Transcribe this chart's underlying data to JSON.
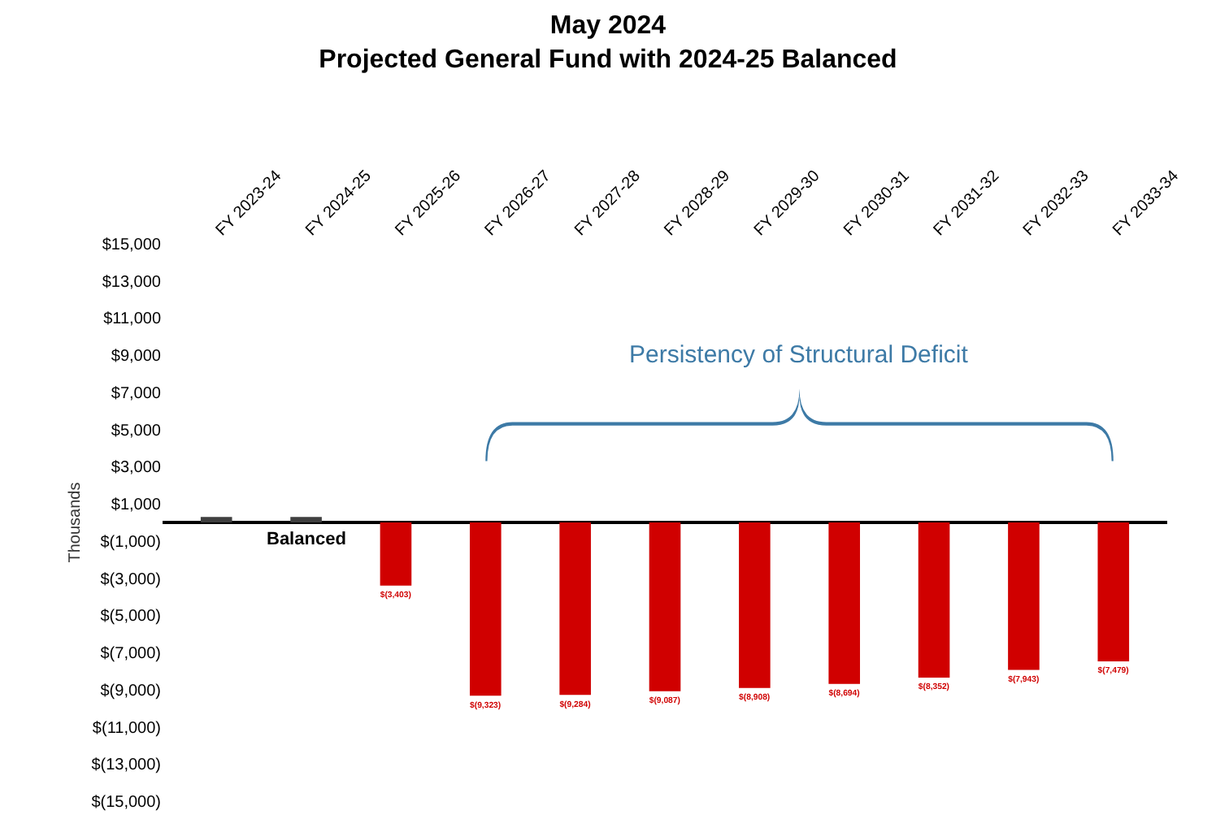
{
  "chart_data": {
    "type": "bar",
    "title": "May 2024",
    "subtitle": "Projected General Fund with 2024-25 Balanced",
    "ylabel": "Thousands",
    "categories": [
      "FY 2023-24",
      "FY 2024-25",
      "FY 2025-26",
      "FY 2026-27",
      "FY 2027-28",
      "FY 2028-29",
      "FY 2029-30",
      "FY 2030-31",
      "FY 2031-32",
      "FY 2032-33",
      "FY 2033-34"
    ],
    "values": [
      300,
      300,
      -3403,
      -9323,
      -9284,
      -9087,
      -8908,
      -8694,
      -8352,
      -7943,
      -7479
    ],
    "value_labels": [
      null,
      null,
      "$(3,403)",
      "$(9,323)",
      "$(9,284)",
      "$(9,087)",
      "$(8,908)",
      "$(8,694)",
      "$(8,352)",
      "$(7,943)",
      "$(7,479)"
    ],
    "colors": [
      "#404040",
      "#404040",
      "#d00000",
      "#d00000",
      "#d00000",
      "#d00000",
      "#d00000",
      "#d00000",
      "#d00000",
      "#d00000",
      "#d00000"
    ],
    "ylim": [
      -15000,
      15000
    ],
    "yticks": [
      {
        "value": 15000,
        "label": "$15,000"
      },
      {
        "value": 13000,
        "label": "$13,000"
      },
      {
        "value": 11000,
        "label": "$11,000"
      },
      {
        "value": 9000,
        "label": "$9,000"
      },
      {
        "value": 7000,
        "label": "$7,000"
      },
      {
        "value": 5000,
        "label": "$5,000"
      },
      {
        "value": 3000,
        "label": "$3,000"
      },
      {
        "value": 1000,
        "label": "$1,000"
      },
      {
        "value": -1000,
        "label": "$(1,000)"
      },
      {
        "value": -3000,
        "label": "$(3,000)"
      },
      {
        "value": -5000,
        "label": "$(5,000)"
      },
      {
        "value": -7000,
        "label": "$(7,000)"
      },
      {
        "value": -9000,
        "label": "$(9,000)"
      },
      {
        "value": -11000,
        "label": "$(11,000)"
      },
      {
        "value": -13000,
        "label": "$(13,000)"
      },
      {
        "value": -15000,
        "label": "$(15,000)"
      }
    ],
    "annotations": [
      "Persistency of Structural Deficit",
      "Balanced"
    ]
  }
}
